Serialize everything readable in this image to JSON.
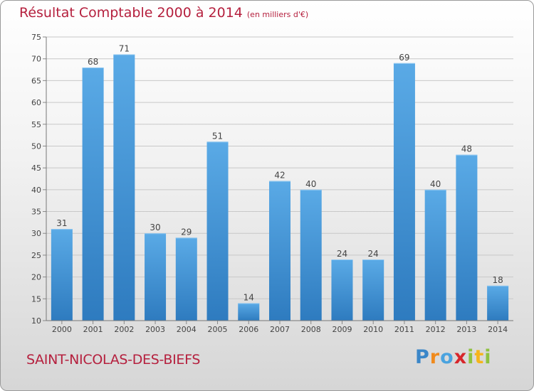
{
  "title": "Résultat Comptable 2000 à 2014",
  "subtitle": "(en milliers d'€)",
  "commune": "SAINT-NICOLAS-DES-BIEFS",
  "logo": {
    "letters": [
      "P",
      "r",
      "o",
      "x",
      "i",
      "t",
      "i"
    ],
    "colors": [
      "#3a86c8",
      "#f08a1c",
      "#4aa3df",
      "#d7262b",
      "#8fc23f",
      "#f5b51b",
      "#8fc23f"
    ]
  },
  "colors": {
    "bar_light": "#5aaae6",
    "bar_dark": "#2e7bbf",
    "grid": "#c8c8c8",
    "text": "#444444",
    "title": "#b5203e"
  },
  "chart_data": {
    "type": "bar",
    "categories": [
      "2000",
      "2001",
      "2002",
      "2003",
      "2004",
      "2005",
      "2006",
      "2007",
      "2008",
      "2009",
      "2010",
      "2011",
      "2012",
      "2013",
      "2014"
    ],
    "values": [
      31,
      68,
      71,
      30,
      29,
      51,
      14,
      42,
      40,
      24,
      24,
      69,
      40,
      48,
      18
    ],
    "ylim": [
      10,
      75
    ],
    "yticks": [
      10,
      15,
      20,
      25,
      30,
      35,
      40,
      45,
      50,
      55,
      60,
      65,
      70,
      75
    ],
    "grid": true,
    "data_labels": true
  }
}
